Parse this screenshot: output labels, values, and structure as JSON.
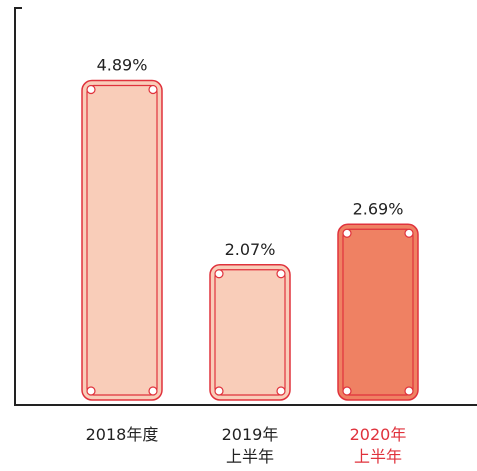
{
  "chart_data": {
    "type": "bar",
    "categories": [
      "2018年度",
      "2019年\n上半年",
      "2020年\n上半年"
    ],
    "values": [
      4.89,
      2.07,
      2.69
    ],
    "value_labels": [
      "4.89%",
      "2.07%",
      "2.69%"
    ],
    "colors": [
      "#f9cdb9",
      "#f9cdb9",
      "#ef8163"
    ],
    "outline_color": "#e0323c",
    "label_colors": [
      "#222222",
      "#222222",
      "#e0323c"
    ],
    "ylim": [
      0,
      6
    ]
  }
}
